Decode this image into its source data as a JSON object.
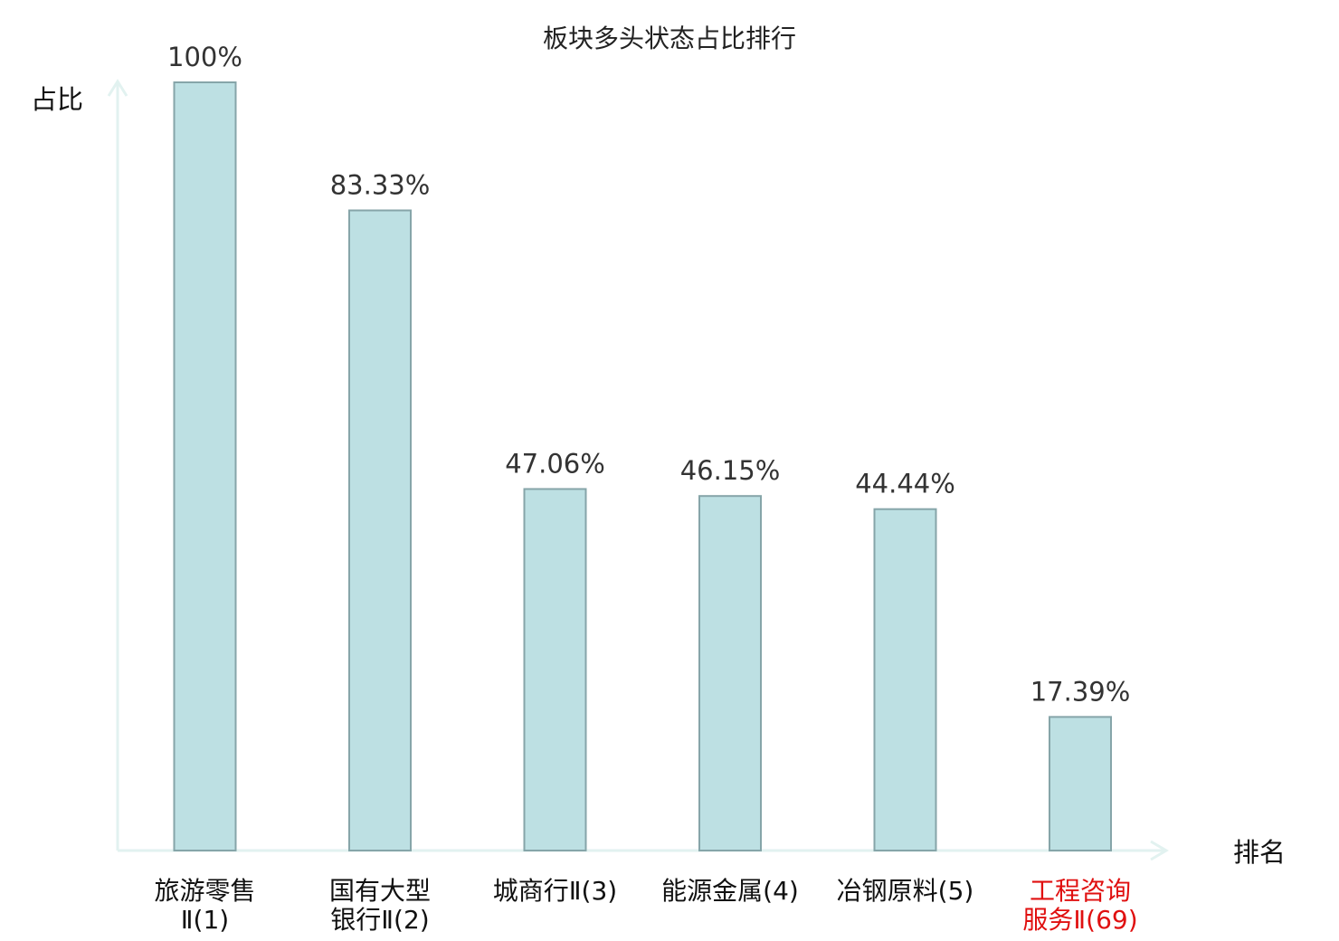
{
  "chart_data": {
    "type": "bar",
    "title": "板块多头状态占比排行",
    "ylabel": "占比",
    "xlabel": "排名",
    "ylim": [
      0,
      100
    ],
    "grid": false,
    "categories": [
      [
        "旅游零售",
        "Ⅱ(1)"
      ],
      [
        "国有大型",
        "银行Ⅱ(2)"
      ],
      [
        "城商行Ⅱ(3)"
      ],
      [
        "能源金属(4)"
      ],
      [
        "冶钢原料(5)"
      ],
      [
        "工程咨询",
        "服务Ⅱ(69)"
      ]
    ],
    "values": [
      100,
      83.33,
      47.06,
      46.15,
      44.44,
      17.39
    ],
    "value_labels": [
      "100%",
      "83.33%",
      "47.06%",
      "46.15%",
      "44.44%",
      "17.39%"
    ],
    "highlight_index": 5,
    "colors": {
      "bar_fill": "#bde0e3",
      "bar_stroke": "#86a5a9",
      "axis": "#e2f2f0",
      "highlight_text": "#e01010",
      "text": "#111111"
    }
  }
}
